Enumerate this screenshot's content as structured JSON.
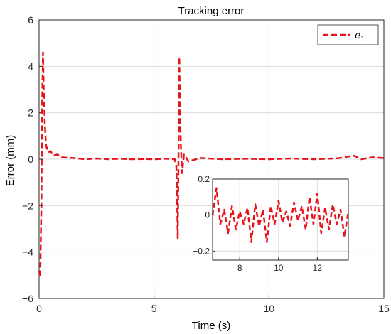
{
  "chart_data": {
    "type": "line",
    "title": "Tracking error",
    "xlabel": "Time (s)",
    "ylabel": "Error (mm)",
    "xlim": [
      0,
      15
    ],
    "ylim": [
      -6,
      6
    ],
    "xticks": [
      "0",
      "5",
      "10",
      "15"
    ],
    "yticks": [
      "−6",
      "−4",
      "−2",
      "0",
      "2",
      "4",
      "6"
    ],
    "grid": true,
    "legend": {
      "position": "top-right",
      "entries": [
        {
          "name": "e",
          "subscript": "1"
        }
      ]
    },
    "series": [
      {
        "name": "e1",
        "color": "#e8141b",
        "style": "dashed",
        "x": [
          0,
          0.05,
          0.1,
          0.13,
          0.17,
          0.2,
          0.25,
          0.3,
          0.4,
          0.5,
          0.6,
          0.8,
          1.0,
          1.5,
          2.0,
          2.5,
          3.0,
          3.5,
          4.0,
          4.5,
          5.0,
          5.5,
          5.9,
          5.97,
          6.0,
          6.03,
          6.07,
          6.1,
          6.13,
          6.17,
          6.22,
          6.3,
          6.5,
          7.0,
          8.0,
          9.0,
          10.0,
          11.0,
          12.0,
          13.0,
          13.7,
          14.0,
          14.5,
          15.0
        ],
        "y": [
          -4.8,
          -5.1,
          -2.0,
          2.2,
          4.6,
          3.0,
          1.5,
          0.6,
          0.3,
          0.35,
          0.15,
          0.2,
          0.08,
          0.05,
          0.0,
          0.03,
          0.0,
          0.02,
          0.0,
          0.01,
          0.0,
          0.02,
          0.0,
          -0.3,
          -1.5,
          -3.4,
          0.8,
          4.4,
          2.0,
          0.5,
          -0.6,
          0.2,
          -0.1,
          0.05,
          0.0,
          0.02,
          0.0,
          0.03,
          0.0,
          0.04,
          0.15,
          0.0,
          0.08,
          0.05
        ]
      }
    ],
    "inset": {
      "xlim": [
        6.6,
        13.6
      ],
      "ylim": [
        -0.25,
        0.2
      ],
      "xticks": [
        "8",
        "10",
        "12"
      ],
      "yticks": [
        "0.2",
        "0",
        "−0.2"
      ],
      "x": [
        6.6,
        6.8,
        7.0,
        7.2,
        7.4,
        7.6,
        7.8,
        8.0,
        8.2,
        8.4,
        8.6,
        8.8,
        9.0,
        9.2,
        9.4,
        9.6,
        9.8,
        10.0,
        10.2,
        10.4,
        10.6,
        10.8,
        11.0,
        11.2,
        11.4,
        11.6,
        11.8,
        12.0,
        12.2,
        12.4,
        12.6,
        12.8,
        13.0,
        13.2,
        13.4,
        13.6
      ],
      "y": [
        0.0,
        0.15,
        -0.05,
        0.03,
        -0.1,
        0.05,
        -0.08,
        0.02,
        -0.05,
        0.04,
        -0.15,
        0.06,
        -0.06,
        0.03,
        -0.15,
        0.05,
        -0.05,
        0.08,
        -0.04,
        0.02,
        -0.06,
        0.07,
        -0.03,
        0.05,
        -0.08,
        0.1,
        -0.05,
        0.12,
        -0.1,
        0.04,
        -0.08,
        0.06,
        -0.05,
        0.03,
        -0.12,
        0.02
      ]
    }
  }
}
